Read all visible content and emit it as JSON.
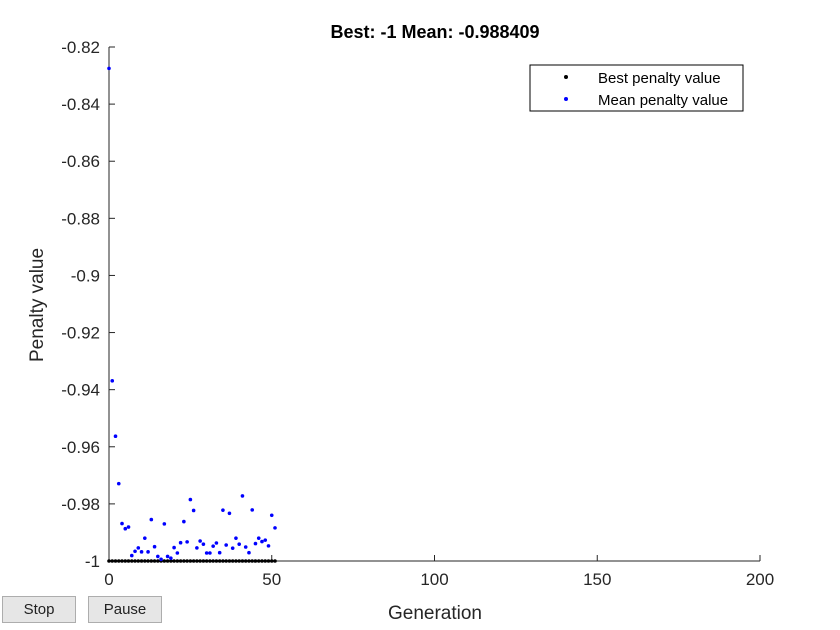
{
  "chart_data": {
    "type": "scatter",
    "title": "Best: -1 Mean: -0.988409",
    "xlabel": "Generation",
    "ylabel": "Penalty value",
    "xlim": [
      0,
      200
    ],
    "ylim": [
      -1,
      -0.82
    ],
    "xticks": [
      "0",
      "50",
      "100",
      "150",
      "200"
    ],
    "yticks": [
      "-0.82",
      "-0.84",
      "-0.86",
      "-0.88",
      "-0.9",
      "-0.92",
      "-0.94",
      "-0.96",
      "-0.98",
      "-1"
    ],
    "legend_position": "top-right",
    "series": [
      {
        "name": "Best penalty value",
        "color": "#000000",
        "x": [
          0,
          1,
          2,
          3,
          4,
          5,
          6,
          7,
          8,
          9,
          10,
          11,
          12,
          13,
          14,
          15,
          16,
          17,
          18,
          19,
          20,
          21,
          22,
          23,
          24,
          25,
          26,
          27,
          28,
          29,
          30,
          31,
          32,
          33,
          34,
          35,
          36,
          37,
          38,
          39,
          40,
          41,
          42,
          43,
          44,
          45,
          46,
          47,
          48,
          49,
          50,
          51
        ],
        "values": [
          -1,
          -1,
          -1,
          -1,
          -1,
          -1,
          -1,
          -1,
          -1,
          -1,
          -1,
          -1,
          -1,
          -1,
          -1,
          -1,
          -1,
          -1,
          -1,
          -1,
          -1,
          -1,
          -1,
          -1,
          -1,
          -1,
          -1,
          -1,
          -1,
          -1,
          -1,
          -1,
          -1,
          -1,
          -1,
          -1,
          -1,
          -1,
          -1,
          -1,
          -1,
          -1,
          -1,
          -1,
          -1,
          -1,
          -1,
          -1,
          -1,
          -1,
          -1,
          -1
        ]
      },
      {
        "name": "Mean penalty value",
        "color": "#0000ff",
        "x": [
          0,
          1,
          2,
          3,
          4,
          5,
          6,
          7,
          8,
          9,
          10,
          11,
          12,
          13,
          14,
          15,
          16,
          17,
          18,
          19,
          20,
          21,
          22,
          23,
          24,
          25,
          26,
          27,
          28,
          29,
          30,
          31,
          32,
          33,
          34,
          35,
          36,
          37,
          38,
          39,
          40,
          41,
          42,
          43,
          44,
          45,
          46,
          47,
          48,
          49,
          50,
          51
        ],
        "values": [
          -0.8275,
          -0.9369,
          -0.9563,
          -0.9729,
          -0.9869,
          -0.9887,
          -0.9881,
          -0.9981,
          -0.9966,
          -0.9954,
          -0.9968,
          -0.992,
          -0.9968,
          -0.9855,
          -0.995,
          -0.9984,
          -0.9994,
          -0.987,
          -0.9984,
          -0.999,
          -0.9953,
          -0.9972,
          -0.9936,
          -0.9862,
          -0.9933,
          -0.9785,
          -0.9823,
          -0.9954,
          -0.993,
          -0.9941,
          -0.9972,
          -0.9972,
          -0.9948,
          -0.9937,
          -0.9971,
          -0.9822,
          -0.9944,
          -0.9833,
          -0.9955,
          -0.992,
          -0.9941,
          -0.9772,
          -0.9951,
          -0.9971,
          -0.9821,
          -0.9939,
          -0.992,
          -0.9932,
          -0.9927,
          -0.9947,
          -0.984,
          -0.9884
        ]
      }
    ]
  },
  "controls": {
    "stop_label": "Stop",
    "pause_label": "Pause"
  }
}
